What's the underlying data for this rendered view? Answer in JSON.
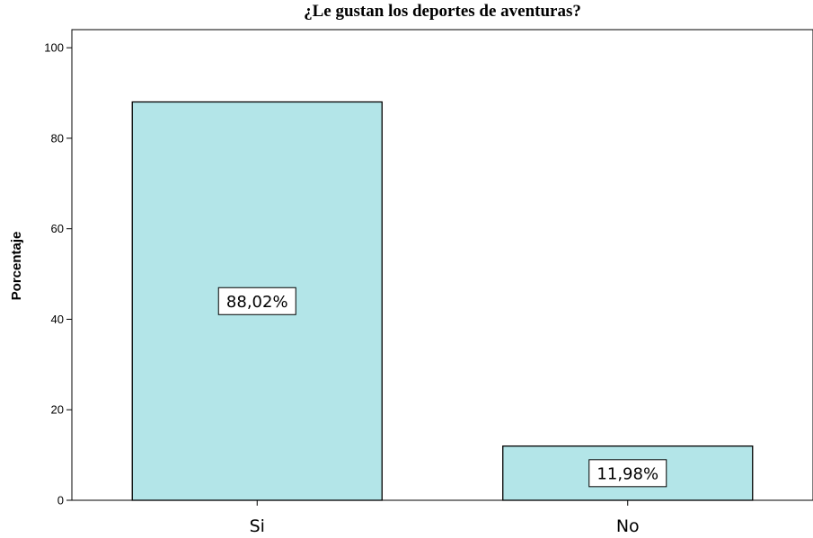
{
  "chart_data": {
    "type": "bar",
    "title": "¿Le gustan los deportes de aventuras?",
    "xlabel": "",
    "ylabel": "Porcentaje",
    "categories": [
      "Si",
      "No"
    ],
    "values": [
      88.02,
      11.98
    ],
    "data_labels": [
      "88,02%",
      "11,98%"
    ],
    "ylim": [
      0,
      104
    ],
    "yticks": [
      0,
      20,
      40,
      60,
      80,
      100
    ],
    "grid": false,
    "legend": "none",
    "bar_color": "#b3e5e8",
    "bar_edge_color": "#000000"
  }
}
